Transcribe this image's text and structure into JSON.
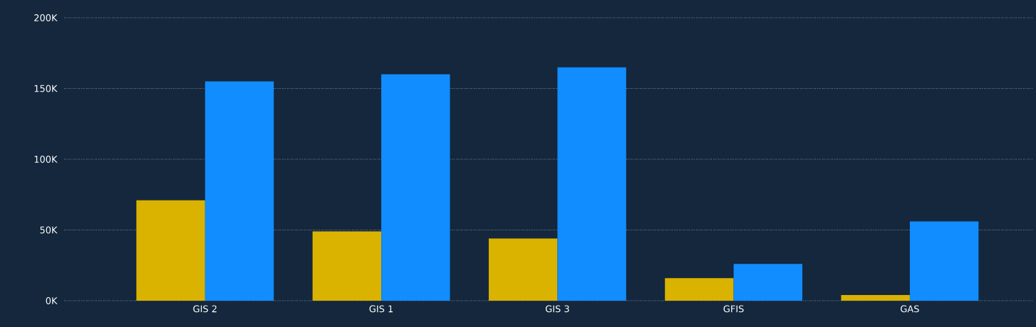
{
  "chart_data": {
    "type": "bar",
    "categories": [
      "GIS 2",
      "GIS 1",
      "GIS 3",
      "GFIS",
      "GAS"
    ],
    "series": [
      {
        "color": "#d9b300",
        "values": [
          71000,
          49000,
          44000,
          16000,
          4000
        ]
      },
      {
        "color": "#118dff",
        "values": [
          155000,
          160000,
          165000,
          26000,
          56000
        ]
      }
    ],
    "ylim": [
      0,
      200000
    ],
    "yticks": [
      {
        "value": 0,
        "label": "0K"
      },
      {
        "value": 50000,
        "label": "50K"
      },
      {
        "value": 100000,
        "label": "100K"
      },
      {
        "value": 150000,
        "label": "150K"
      },
      {
        "value": 200000,
        "label": "200K"
      }
    ],
    "grid": "y"
  }
}
